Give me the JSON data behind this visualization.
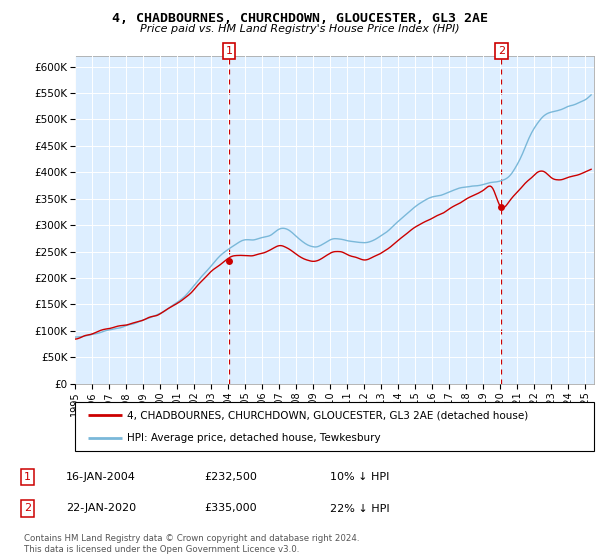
{
  "title": "4, CHADBOURNES, CHURCHDOWN, GLOUCESTER, GL3 2AE",
  "subtitle": "Price paid vs. HM Land Registry's House Price Index (HPI)",
  "legend_line1": "4, CHADBOURNES, CHURCHDOWN, GLOUCESTER, GL3 2AE (detached house)",
  "legend_line2": "HPI: Average price, detached house, Tewkesbury",
  "annotation1_label": "1",
  "annotation1_date": "16-JAN-2004",
  "annotation1_price": "£232,500",
  "annotation1_hpi": "10% ↓ HPI",
  "annotation2_label": "2",
  "annotation2_date": "22-JAN-2020",
  "annotation2_price": "£335,000",
  "annotation2_hpi": "22% ↓ HPI",
  "footer1": "Contains HM Land Registry data © Crown copyright and database right 2024.",
  "footer2": "This data is licensed under the Open Government Licence v3.0.",
  "hpi_color": "#7ab8d9",
  "price_color": "#cc0000",
  "annotation_color": "#cc0000",
  "chart_bg": "#ddeeff",
  "ylim": [
    0,
    620000
  ],
  "yticks": [
    0,
    50000,
    100000,
    150000,
    200000,
    250000,
    300000,
    350000,
    400000,
    450000,
    500000,
    550000,
    600000
  ],
  "ytick_labels": [
    "£0",
    "£50K",
    "£100K",
    "£150K",
    "£200K",
    "£250K",
    "£300K",
    "£350K",
    "£400K",
    "£450K",
    "£500K",
    "£550K",
    "£600K"
  ],
  "purchase1_x": 2004.04,
  "purchase1_y": 232500,
  "purchase2_x": 2020.055,
  "purchase2_y": 335000,
  "xmin": 1995.0,
  "xmax": 2025.5
}
